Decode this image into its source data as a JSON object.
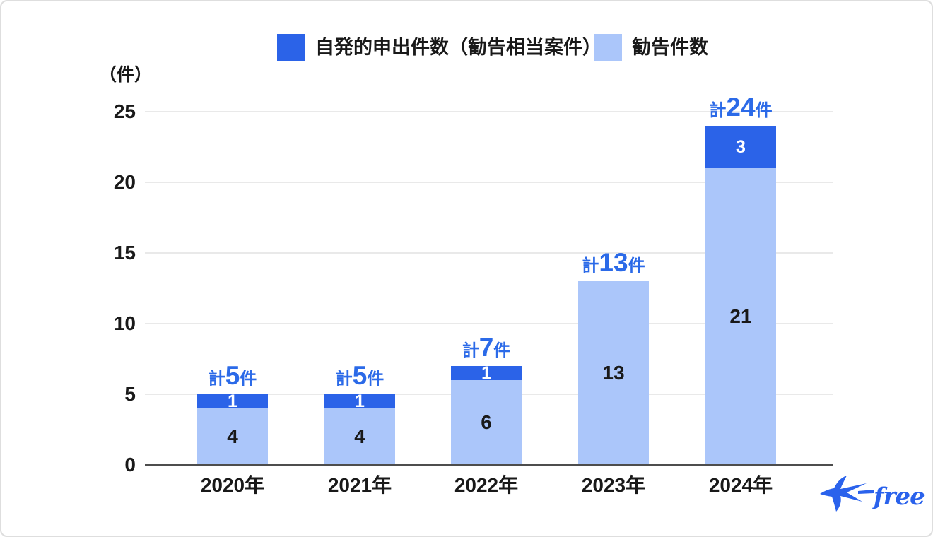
{
  "frame": {
    "background": "#ffffff",
    "border_color": "#dedede"
  },
  "legend": {
    "items": [
      {
        "label": "自発的申出件数（勧告相当案件）",
        "color": "#2b63e8"
      },
      {
        "label": "勧告件数",
        "color": "#abc6fa"
      }
    ]
  },
  "axis": {
    "unit_label": "（件）",
    "grid_color": "#e9e9e9",
    "axis_line_color": "#4d4d4d",
    "text_color": "#191919"
  },
  "chart_data": {
    "type": "bar",
    "stacked": true,
    "categories": [
      "2020年",
      "2021年",
      "2022年",
      "2023年",
      "2024年"
    ],
    "series": [
      {
        "name": "勧告件数",
        "color": "#abc6fa",
        "values": [
          4,
          4,
          6,
          13,
          21
        ]
      },
      {
        "name": "自発的申出件数（勧告相当案件）",
        "color": "#2b63e8",
        "values": [
          1,
          1,
          1,
          0,
          3
        ]
      }
    ],
    "totals": [
      5,
      5,
      7,
      13,
      24
    ],
    "total_label_prefix": "計",
    "total_label_suffix": "件",
    "total_label_color": "#2b6ae8",
    "ylabel": "（件）",
    "y_ticks": [
      0,
      5,
      10,
      15,
      20,
      25
    ],
    "ylim": [
      0,
      25
    ],
    "grid": true,
    "legend_position": "top"
  },
  "logo": {
    "text": "freee",
    "color": "#2a62ec",
    "icon": "swallow-bird-icon"
  }
}
